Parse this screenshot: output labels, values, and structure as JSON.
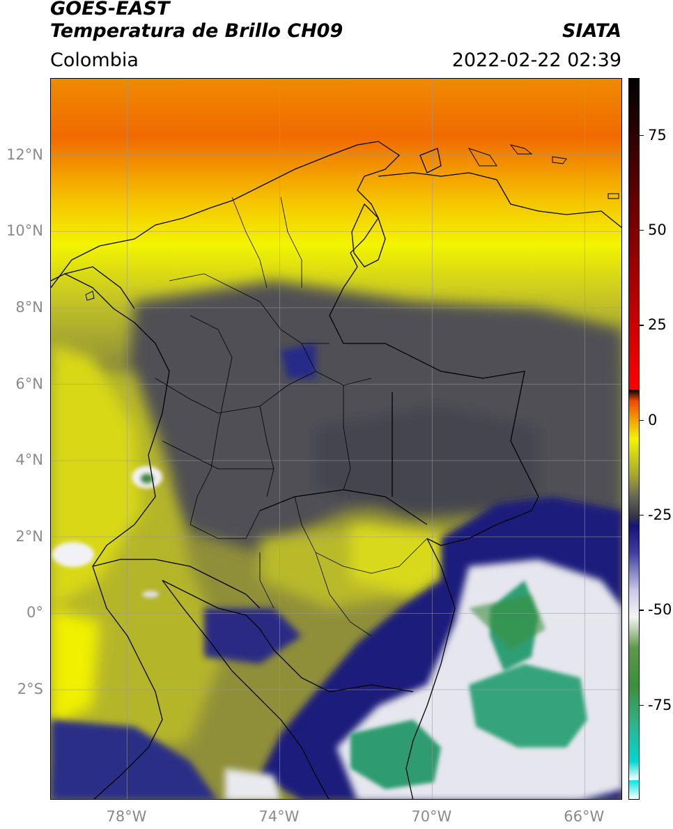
{
  "header": {
    "satellite": "GOES-EAST",
    "product": "Temperatura de Brillo CH09",
    "institution": "SIATA",
    "region": "Colombia",
    "datetime": "2022-02-22 02:39"
  },
  "map": {
    "lat_range": [
      -4.9,
      14.0
    ],
    "lon_range": [
      -80.0,
      -65.0
    ],
    "lat_ticks": [
      {
        "value": 12,
        "label": "12°N"
      },
      {
        "value": 10,
        "label": "10°N"
      },
      {
        "value": 8,
        "label": "8°N"
      },
      {
        "value": 6,
        "label": "6°N"
      },
      {
        "value": 4,
        "label": "4°N"
      },
      {
        "value": 2,
        "label": "2°N"
      },
      {
        "value": 0,
        "label": "0°"
      },
      {
        "value": -2,
        "label": "2°S"
      }
    ],
    "lon_ticks": [
      {
        "value": -78,
        "label": "78°W"
      },
      {
        "value": -74,
        "label": "74°W"
      },
      {
        "value": -70,
        "label": "70°W"
      },
      {
        "value": -66,
        "label": "66°W"
      }
    ],
    "gridlines": true,
    "colors": {
      "orange": "#f07a00",
      "yellow": "#f3f400",
      "olive": "#a8a82a",
      "dark_gray": "#4b4b50",
      "navy": "#1d1f7e",
      "white": "#f4f4f4",
      "green": "#3a8a3a",
      "teal": "#2fb38a"
    }
  },
  "colorbar": {
    "range": [
      -100,
      90
    ],
    "ticks": [
      {
        "value": 75,
        "label": "75"
      },
      {
        "value": 50,
        "label": "50"
      },
      {
        "value": 25,
        "label": "25"
      },
      {
        "value": 0,
        "label": "0"
      },
      {
        "value": -25,
        "label": "-25"
      },
      {
        "value": -50,
        "label": "-50"
      },
      {
        "value": -75,
        "label": "-75"
      }
    ],
    "stops": [
      {
        "value": -100,
        "color": "#ffffff"
      },
      {
        "value": -95,
        "color": "#ffffff"
      },
      {
        "value": -95,
        "color": "#00e5e5"
      },
      {
        "value": -90,
        "color": "#00d7d2"
      },
      {
        "value": -80,
        "color": "#2fb38a"
      },
      {
        "value": -70,
        "color": "#3b8f3b"
      },
      {
        "value": -60,
        "color": "#5e9a4a"
      },
      {
        "value": -52,
        "color": "#f5f5f5"
      },
      {
        "value": -45,
        "color": "#c9c9e8"
      },
      {
        "value": -35,
        "color": "#3e3ea0"
      },
      {
        "value": -28,
        "color": "#141478"
      },
      {
        "value": -25,
        "color": "#3a3a48"
      },
      {
        "value": -20,
        "color": "#6a6a55"
      },
      {
        "value": -15,
        "color": "#a3a330"
      },
      {
        "value": -5,
        "color": "#f3f400"
      },
      {
        "value": 0,
        "color": "#f2a100"
      },
      {
        "value": 5,
        "color": "#f04a00"
      },
      {
        "value": 8,
        "color": "#ff0000"
      },
      {
        "value": 8,
        "color": "#000000"
      },
      {
        "value": 90,
        "color": "#000000"
      }
    ]
  }
}
